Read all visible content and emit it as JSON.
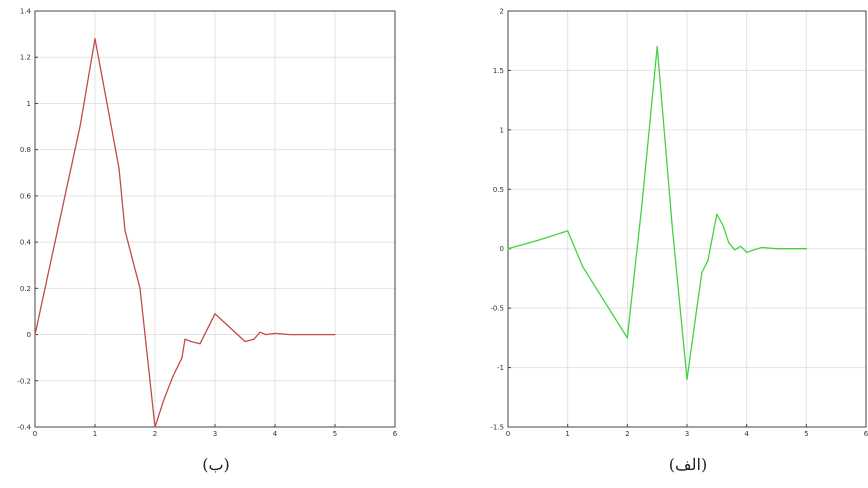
{
  "charts": [
    {
      "caption": "(ب)",
      "color": "#c44a4a"
    },
    {
      "caption": "(الف)",
      "color": "#44d244"
    }
  ],
  "chart_data": [
    {
      "type": "line",
      "title": "",
      "xlabel": "",
      "ylabel": "",
      "xlim": [
        0,
        6
      ],
      "ylim": [
        -0.4,
        1.4
      ],
      "grid": true,
      "xticks": [
        0,
        1,
        2,
        3,
        4,
        5,
        6
      ],
      "xtick_labels": [
        "0",
        "1",
        "2",
        "3",
        "4",
        "5",
        "6"
      ],
      "yticks": [
        -0.4,
        -0.2,
        0,
        0.2,
        0.4,
        0.6,
        0.8,
        1,
        1.2,
        1.4
      ],
      "ytick_labels": [
        "-0.4",
        "-0.2",
        "0",
        "0.2",
        "0.4",
        "0.6",
        "0.8",
        "1",
        "1.2",
        "1.4"
      ],
      "series": [
        {
          "color": "#c44a4a",
          "x": [
            0,
            0.25,
            0.5,
            0.75,
            1.0,
            1.2,
            1.4,
            1.5,
            1.75,
            2.0,
            2.15,
            2.3,
            2.45,
            2.5,
            2.6,
            2.75,
            3.0,
            3.25,
            3.5,
            3.65,
            3.75,
            3.85,
            4.0,
            4.25,
            4.5,
            4.75,
            5.0
          ],
          "values": [
            0,
            0.3,
            0.6,
            0.9,
            1.28,
            1.0,
            0.72,
            0.45,
            0.2,
            -0.4,
            -0.28,
            -0.18,
            -0.1,
            -0.02,
            -0.03,
            -0.04,
            0.09,
            0.03,
            -0.03,
            -0.02,
            0.01,
            0.0,
            0.005,
            0,
            0,
            0,
            0
          ]
        }
      ]
    },
    {
      "type": "line",
      "title": "",
      "xlabel": "",
      "ylabel": "",
      "xlim": [
        0,
        6
      ],
      "ylim": [
        -1.5,
        2
      ],
      "grid": true,
      "xticks": [
        0,
        1,
        2,
        3,
        4,
        5,
        6
      ],
      "xtick_labels": [
        "0",
        "1",
        "2",
        "3",
        "4",
        "5",
        "6"
      ],
      "yticks": [
        -1.5,
        -1,
        -0.5,
        0,
        0.5,
        1,
        1.5,
        2
      ],
      "ytick_labels": [
        "-1.5",
        "-1",
        "-0.5",
        "0",
        "0.5",
        "1",
        "1.5",
        "2"
      ],
      "series": [
        {
          "color": "#44d244",
          "x": [
            0,
            0.5,
            1.0,
            1.25,
            1.5,
            1.75,
            2.0,
            2.25,
            2.5,
            2.75,
            3.0,
            3.15,
            3.25,
            3.35,
            3.5,
            3.6,
            3.7,
            3.8,
            3.9,
            4.0,
            4.25,
            4.5,
            5.0
          ],
          "values": [
            0,
            0.07,
            0.15,
            -0.15,
            -0.35,
            -0.55,
            -0.75,
            0.4,
            1.7,
            0.2,
            -1.1,
            -0.55,
            -0.2,
            -0.1,
            0.29,
            0.2,
            0.05,
            -0.01,
            0.02,
            -0.03,
            0.01,
            0,
            0
          ]
        }
      ]
    }
  ]
}
